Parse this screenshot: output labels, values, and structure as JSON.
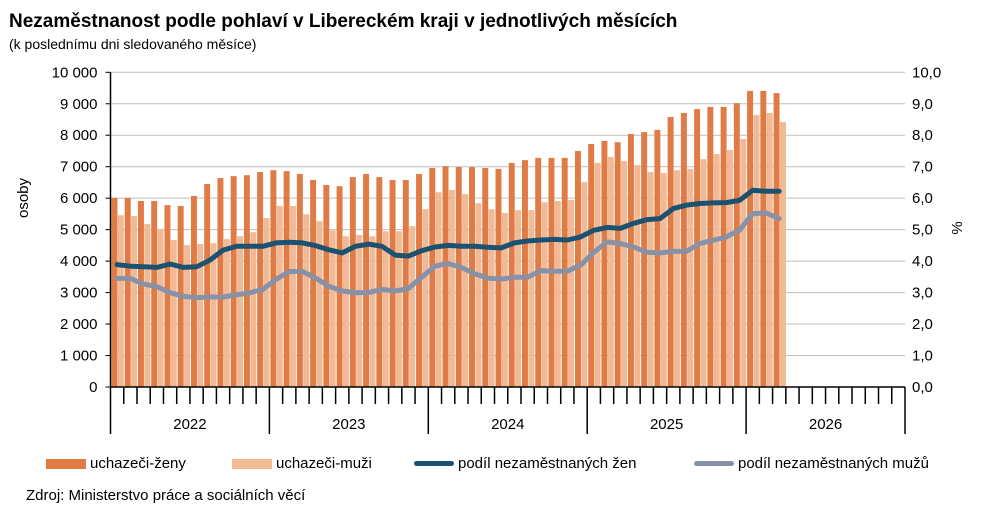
{
  "chart_data": {
    "type": "bar+line",
    "title": "Nezaměstnanost podle pohlaví v Libereckém kraji v jednotlivých měsících",
    "subtitle": "(k poslednímu dni sledovaného měsíce)",
    "ylabel": "osoby",
    "y2label": "%",
    "ylim": [
      0,
      10000
    ],
    "y2lim": [
      0,
      10
    ],
    "yticks": [
      "0",
      "1 000",
      "2 000",
      "3 000",
      "4 000",
      "5 000",
      "6 000",
      "7 000",
      "8 000",
      "9 000",
      "10 000"
    ],
    "y2ticks": [
      "0,0",
      "1,0",
      "2,0",
      "3,0",
      "4,0",
      "5,0",
      "6,0",
      "7,0",
      "8,0",
      "9,0",
      "10,0"
    ],
    "years": [
      "2022",
      "2023",
      "2024",
      "2025",
      "2026"
    ],
    "months_per_year": 12,
    "grid": true,
    "legend_position": "bottom",
    "series": [
      {
        "name": "uchazeči-ženy",
        "type": "bar",
        "axis": "left",
        "color": "#E07B45",
        "values": [
          6010,
          6010,
          5910,
          5910,
          5780,
          5750,
          6070,
          6450,
          6640,
          6700,
          6730,
          6830,
          6890,
          6860,
          6770,
          6580,
          6420,
          6380,
          6670,
          6770,
          6670,
          6580,
          6580,
          6770,
          6960,
          7020,
          6990,
          6990,
          6960,
          6930,
          7120,
          7210,
          7280,
          7280,
          7280,
          7500,
          7720,
          7820,
          7780,
          8040,
          8100,
          8170,
          8580,
          8710,
          8830,
          8900,
          8900,
          9020,
          9410,
          9410,
          9340
        ]
      },
      {
        "name": "uchazeči-muži",
        "type": "bar",
        "axis": "left",
        "color": "#F2B995",
        "values": [
          5460,
          5430,
          5180,
          5020,
          4670,
          4510,
          4540,
          4570,
          4700,
          4790,
          4920,
          5370,
          5750,
          5750,
          5490,
          5270,
          4980,
          4790,
          4830,
          4790,
          4950,
          4950,
          5110,
          5650,
          6190,
          6260,
          6130,
          5840,
          5650,
          5530,
          5620,
          5620,
          5870,
          5910,
          5940,
          6510,
          7120,
          7310,
          7180,
          7050,
          6830,
          6800,
          6890,
          6930,
          7240,
          7400,
          7530,
          7880,
          8640,
          8710,
          8420
        ]
      },
      {
        "name": "podíl nezaměstnaných žen",
        "type": "line",
        "axis": "right",
        "color": "#1B5272",
        "values": [
          3.89,
          3.84,
          3.82,
          3.8,
          3.91,
          3.8,
          3.82,
          4.03,
          4.35,
          4.47,
          4.47,
          4.47,
          4.58,
          4.6,
          4.58,
          4.49,
          4.36,
          4.26,
          4.47,
          4.54,
          4.47,
          4.19,
          4.16,
          4.33,
          4.45,
          4.5,
          4.47,
          4.47,
          4.44,
          4.42,
          4.58,
          4.64,
          4.67,
          4.69,
          4.67,
          4.77,
          4.98,
          5.07,
          5.04,
          5.2,
          5.32,
          5.35,
          5.67,
          5.78,
          5.83,
          5.85,
          5.86,
          5.93,
          6.25,
          6.22,
          6.22
        ]
      },
      {
        "name": "podíl nezaměstnaných mužů",
        "type": "line",
        "axis": "right",
        "color": "#8792A9",
        "values": [
          3.45,
          3.45,
          3.27,
          3.19,
          3.0,
          2.88,
          2.84,
          2.86,
          2.86,
          2.93,
          2.99,
          3.1,
          3.42,
          3.67,
          3.67,
          3.46,
          3.2,
          3.05,
          3.0,
          3.0,
          3.1,
          3.05,
          3.13,
          3.49,
          3.84,
          3.92,
          3.8,
          3.6,
          3.46,
          3.43,
          3.49,
          3.49,
          3.7,
          3.68,
          3.68,
          3.87,
          4.28,
          4.61,
          4.56,
          4.45,
          4.28,
          4.26,
          4.31,
          4.31,
          4.56,
          4.66,
          4.77,
          4.98,
          5.51,
          5.53,
          5.35
        ]
      }
    ],
    "source": "Zdroj: Ministerstvo práce a sociálních věcí"
  }
}
